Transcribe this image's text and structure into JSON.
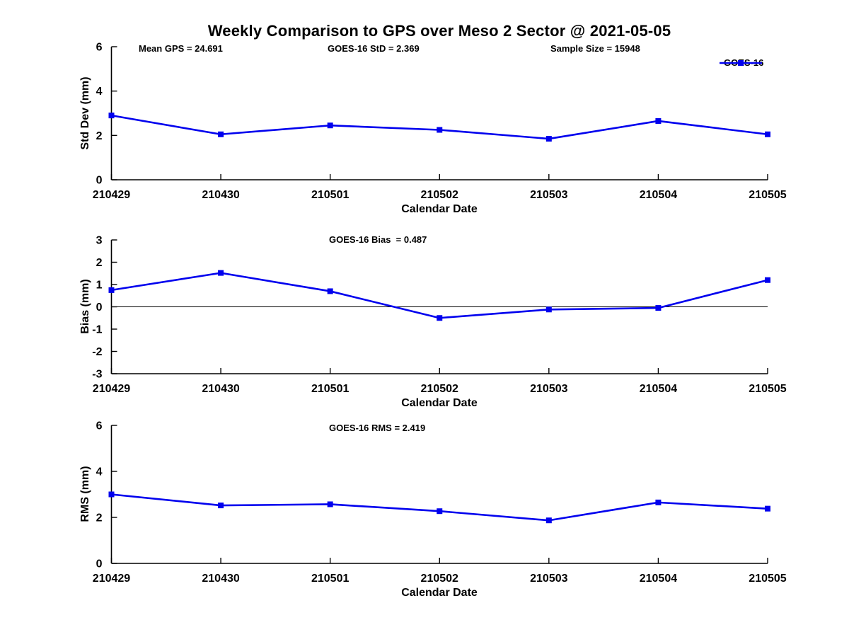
{
  "title": "Weekly Comparison to GPS over Meso 2 Sector @ 2021-05-05",
  "colors": {
    "series": "#0000EE",
    "axis": "#000000",
    "zero_line": "#000000"
  },
  "chart_data": [
    {
      "type": "line",
      "categories": [
        "210429",
        "210430",
        "210501",
        "210502",
        "210503",
        "210504",
        "210505"
      ],
      "series": [
        {
          "name": "GOES-16",
          "values": [
            2.9,
            2.05,
            2.45,
            2.25,
            1.85,
            2.65,
            2.05
          ]
        }
      ],
      "xlabel": "Calendar Date",
      "ylabel": "Std Dev (mm)",
      "ylim": [
        0,
        6
      ],
      "yticks": [
        0,
        2,
        4,
        6
      ],
      "grid": false,
      "zero_line": false,
      "marker": "square",
      "annotations": [
        "Mean GPS = 24.691",
        "GOES-16 StD = 2.369",
        "Sample Size = 15948"
      ],
      "legend": {
        "label": "GOES-16",
        "position": "top-right"
      }
    },
    {
      "type": "line",
      "categories": [
        "210429",
        "210430",
        "210501",
        "210502",
        "210503",
        "210504",
        "210505"
      ],
      "series": [
        {
          "name": "GOES-16",
          "values": [
            0.75,
            1.52,
            0.7,
            -0.5,
            -0.12,
            -0.05,
            1.2
          ]
        }
      ],
      "xlabel": "Calendar Date",
      "ylabel": "Bias (mm)",
      "ylim": [
        -3,
        3
      ],
      "yticks": [
        -3,
        -2,
        -1,
        0,
        1,
        2,
        3
      ],
      "grid": false,
      "zero_line": true,
      "marker": "square",
      "annotations": [
        "GOES-16 Bias  = 0.487"
      ]
    },
    {
      "type": "line",
      "categories": [
        "210429",
        "210430",
        "210501",
        "210502",
        "210503",
        "210504",
        "210505"
      ],
      "series": [
        {
          "name": "GOES-16",
          "values": [
            3.0,
            2.52,
            2.57,
            2.27,
            1.87,
            2.65,
            2.38
          ]
        }
      ],
      "xlabel": "Calendar Date",
      "ylabel": "RMS (mm)",
      "ylim": [
        0,
        6
      ],
      "yticks": [
        0,
        2,
        4,
        6
      ],
      "grid": false,
      "zero_line": false,
      "marker": "square",
      "annotations": [
        "GOES-16 RMS = 2.419"
      ]
    }
  ]
}
